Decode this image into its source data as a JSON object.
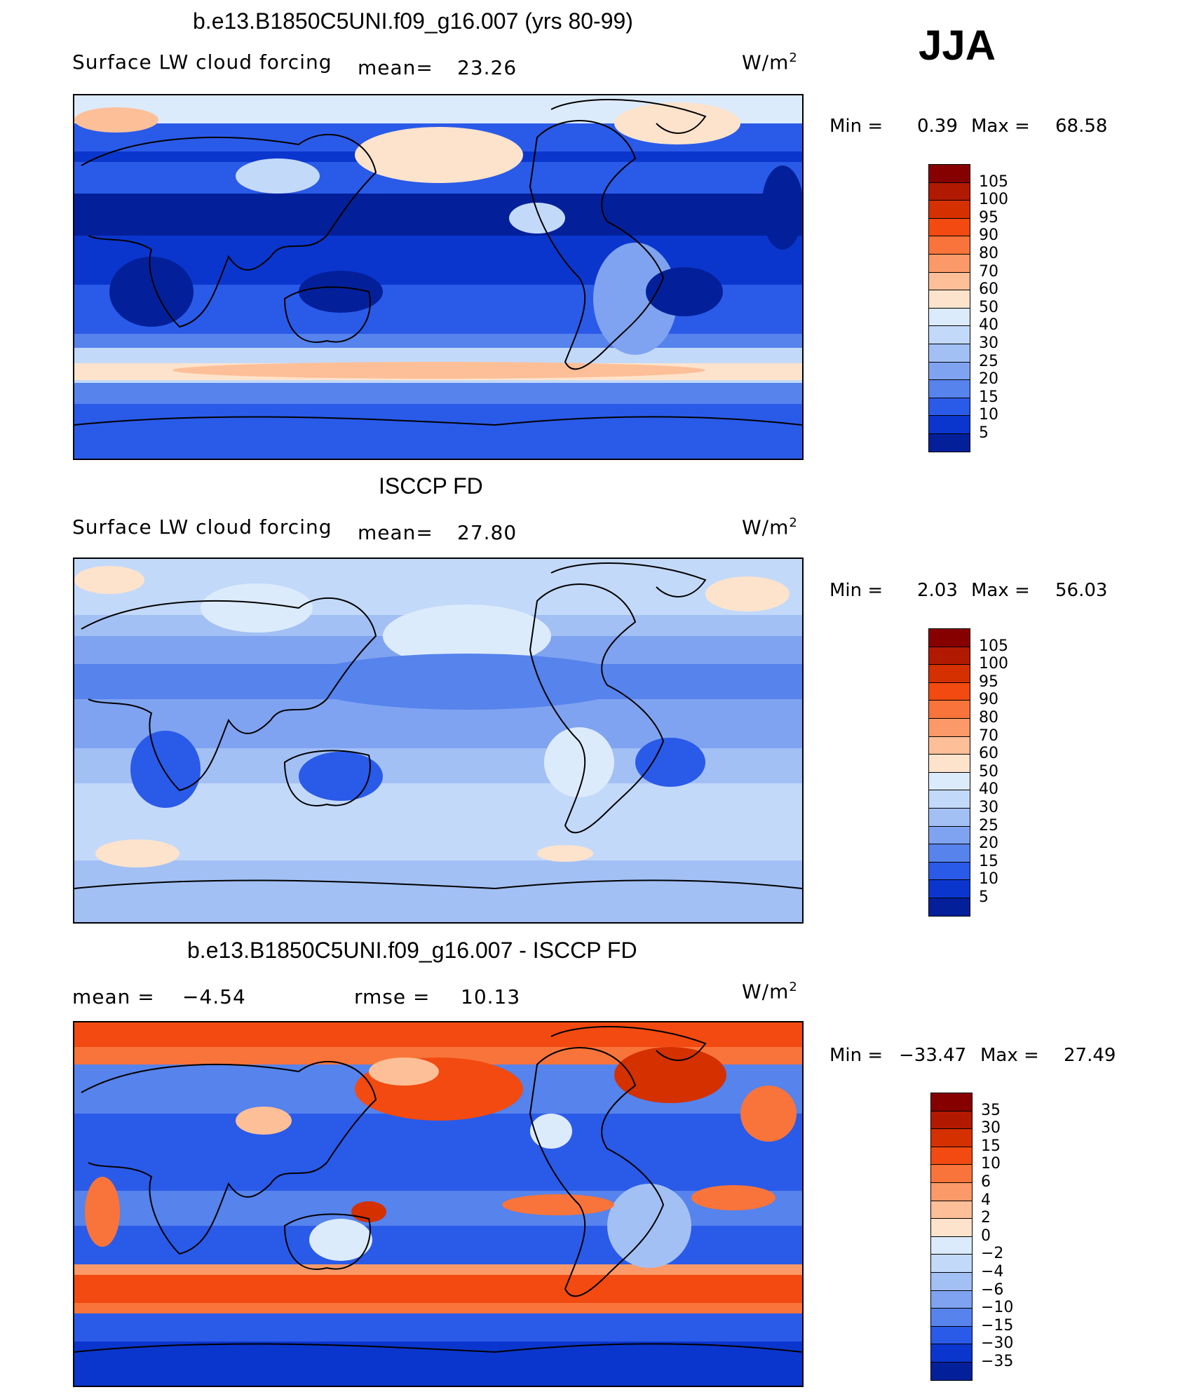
{
  "season": "JJA",
  "panels": [
    {
      "title": "b.e13.B1850C5UNI.f09_g16.007 (yrs 80-99)",
      "left_label": "Surface LW cloud forcing",
      "stat_label": "mean=",
      "stat_value": "23.26",
      "units": "W/m",
      "units_sup": "2",
      "min_label": "Min =",
      "min_value": "0.39",
      "max_label": "Max =",
      "max_value": "68.58",
      "palette": "abs",
      "colorbar": {
        "ticks": [
          "105",
          "100",
          "95",
          "90",
          "80",
          "70",
          "60",
          "50",
          "40",
          "30",
          "25",
          "20",
          "15",
          "10",
          "5"
        ],
        "colors": [
          "#870000",
          "#b11a00",
          "#d43000",
          "#f24a10",
          "#f8743a",
          "#fb9a68",
          "#fdbf98",
          "#fde3cc",
          "#dcebfb",
          "#c3d9fa",
          "#a3c0f5",
          "#7fa3f0",
          "#5683ec",
          "#2a5ae8",
          "#0b36cd",
          "#03209a"
        ]
      }
    },
    {
      "title": "ISCCP FD",
      "left_label": "Surface LW cloud forcing",
      "stat_label": "mean=",
      "stat_value": "27.80",
      "units": "W/m",
      "units_sup": "2",
      "min_label": "Min =",
      "min_value": "2.03",
      "max_label": "Max =",
      "max_value": "56.03",
      "palette": "abs",
      "colorbar": {
        "ticks": [
          "105",
          "100",
          "95",
          "90",
          "80",
          "70",
          "60",
          "50",
          "40",
          "30",
          "25",
          "20",
          "15",
          "10",
          "5"
        ],
        "colors": [
          "#870000",
          "#b11a00",
          "#d43000",
          "#f24a10",
          "#f8743a",
          "#fb9a68",
          "#fdbf98",
          "#fde3cc",
          "#dcebfb",
          "#c3d9fa",
          "#a3c0f5",
          "#7fa3f0",
          "#5683ec",
          "#2a5ae8",
          "#0b36cd",
          "#03209a"
        ]
      }
    },
    {
      "title": "b.e13.B1850C5UNI.f09_g16.007 - ISCCP FD",
      "mean_label": "mean =",
      "mean_value": "−4.54",
      "rmse_label": "rmse =",
      "rmse_value": "10.13",
      "units": "W/m",
      "units_sup": "2",
      "min_label": "Min =",
      "min_value": "−33.47",
      "max_label": "Max =",
      "max_value": "27.49",
      "palette": "diff",
      "colorbar": {
        "ticks": [
          "35",
          "30",
          "15",
          "10",
          "6",
          "4",
          "2",
          "0",
          "−2",
          "−4",
          "−6",
          "−10",
          "−15",
          "−30",
          "−35"
        ],
        "colors": [
          "#870000",
          "#b11a00",
          "#d43000",
          "#f24a10",
          "#f8743a",
          "#fb9a68",
          "#fdbf98",
          "#fde3cc",
          "#dcebfb",
          "#c3d9fa",
          "#a3c0f5",
          "#7fa3f0",
          "#5683ec",
          "#2a5ae8",
          "#0b36cd",
          "#03209a"
        ]
      }
    }
  ]
}
